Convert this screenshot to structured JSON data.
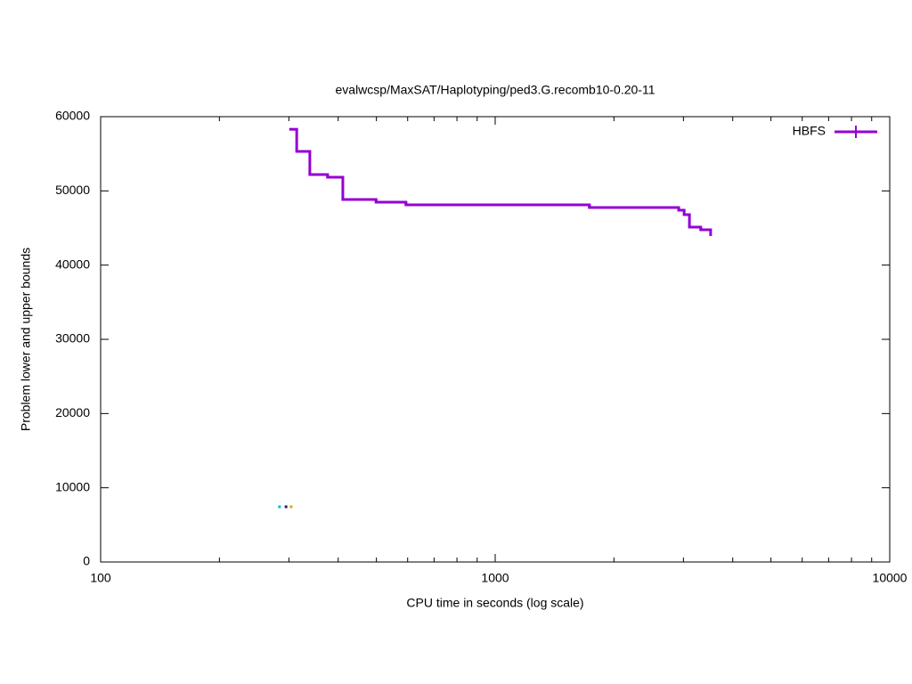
{
  "chart_data": {
    "type": "step",
    "title": "evalwcsp/MaxSAT/Haplotyping/ped3.G.recomb10-0.20-11",
    "x_label": "CPU time in seconds (log scale)",
    "y_label": "Problem lower and upper bounds",
    "xscale": "log",
    "xlim": [
      100,
      10000
    ],
    "xticks": [
      100,
      1000,
      10000
    ],
    "xminorticks": [
      200,
      300,
      400,
      500,
      600,
      700,
      800,
      900,
      2000,
      3000,
      4000,
      5000,
      6000,
      7000,
      8000,
      9000
    ],
    "ylim": [
      0,
      60000
    ],
    "yticks": [
      0,
      10000,
      20000,
      30000,
      40000,
      50000,
      60000
    ],
    "legend": "top-right",
    "series": [
      {
        "name": "HBFS",
        "color": "#9400d3",
        "x": [
          303,
          314,
          339,
          376,
          411,
          499,
          594,
          1733,
          2918,
          3012,
          3107,
          3319,
          3516
        ],
        "values": [
          58300,
          55320,
          52200,
          51840,
          48840,
          48480,
          48120,
          47760,
          47400,
          46800,
          45120,
          44760,
          43920
        ]
      }
    ],
    "points": {
      "x": [
        284,
        295,
        304
      ],
      "values": [
        7440,
        7440,
        7440
      ],
      "colors": [
        "#00bcd4",
        "#1a1a80",
        "#e6a000"
      ]
    }
  }
}
